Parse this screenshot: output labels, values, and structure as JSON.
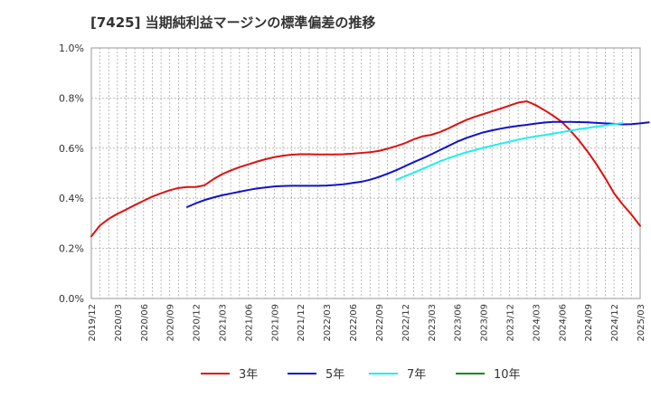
{
  "chart_data": {
    "type": "line",
    "title": "[7425]  当期純利益マージンの標準偏差の推移",
    "xlabel": "",
    "ylabel": "",
    "y_range": [
      0.0,
      1.0
    ],
    "y_ticks": [
      {
        "value": 0.0,
        "label": "0.0%"
      },
      {
        "value": 0.2,
        "label": "0.2%"
      },
      {
        "value": 0.4,
        "label": "0.4%"
      },
      {
        "value": 0.6,
        "label": "0.6%"
      },
      {
        "value": 0.8,
        "label": "0.8%"
      },
      {
        "value": 1.0,
        "label": "1.0%"
      }
    ],
    "x_ticks": [
      "2019/12",
      "2020/03",
      "2020/06",
      "2020/09",
      "2020/12",
      "2021/03",
      "2021/06",
      "2021/09",
      "2021/12",
      "2022/03",
      "2022/06",
      "2022/09",
      "2022/12",
      "2023/03",
      "2023/06",
      "2023/09",
      "2023/12",
      "2024/03",
      "2024/06",
      "2024/09",
      "2024/12",
      "2025/03"
    ],
    "grid": true,
    "legend_position": "bottom",
    "series": [
      {
        "name": "3年",
        "color": "#dd1111",
        "start": "2019/12",
        "values": [
          0.248,
          0.292,
          0.318,
          0.338,
          0.355,
          0.373,
          0.39,
          0.407,
          0.42,
          0.432,
          0.441,
          0.445,
          0.445,
          0.452,
          0.476,
          0.496,
          0.511,
          0.524,
          0.535,
          0.546,
          0.556,
          0.564,
          0.57,
          0.574,
          0.576,
          0.576,
          0.575,
          0.575,
          0.575,
          0.576,
          0.578,
          0.581,
          0.584,
          0.589,
          0.598,
          0.608,
          0.62,
          0.635,
          0.647,
          0.653,
          0.664,
          0.679,
          0.696,
          0.712,
          0.725,
          0.736,
          0.747,
          0.758,
          0.77,
          0.782,
          0.787,
          0.772,
          0.752,
          0.73,
          0.705,
          0.67,
          0.63,
          0.585,
          0.535,
          0.48,
          0.42,
          0.375,
          0.335,
          0.29
        ]
      },
      {
        "name": "5年",
        "color": "#1111cc",
        "start": "2020/11",
        "values": [
          0.365,
          0.38,
          0.393,
          0.403,
          0.412,
          0.419,
          0.426,
          0.433,
          0.439,
          0.443,
          0.447,
          0.449,
          0.45,
          0.45,
          0.45,
          0.45,
          0.451,
          0.453,
          0.456,
          0.461,
          0.466,
          0.474,
          0.485,
          0.498,
          0.512,
          0.528,
          0.544,
          0.559,
          0.575,
          0.592,
          0.609,
          0.626,
          0.64,
          0.652,
          0.663,
          0.671,
          0.678,
          0.684,
          0.689,
          0.693,
          0.698,
          0.702,
          0.705,
          0.705,
          0.705,
          0.704,
          0.703,
          0.701,
          0.699,
          0.697,
          0.695,
          0.696,
          0.699,
          0.703
        ]
      },
      {
        "name": "7年",
        "color": "#22eeee",
        "start": "2022/11",
        "values": [
          0.473,
          0.488,
          0.502,
          0.517,
          0.532,
          0.547,
          0.56,
          0.572,
          0.583,
          0.592,
          0.601,
          0.61,
          0.618,
          0.626,
          0.634,
          0.641,
          0.647,
          0.652,
          0.658,
          0.664,
          0.67,
          0.676,
          0.681,
          0.686,
          0.691,
          0.696,
          0.7
        ]
      },
      {
        "name": "10年",
        "color": "#118811",
        "start": "2024/12",
        "values": []
      }
    ]
  }
}
